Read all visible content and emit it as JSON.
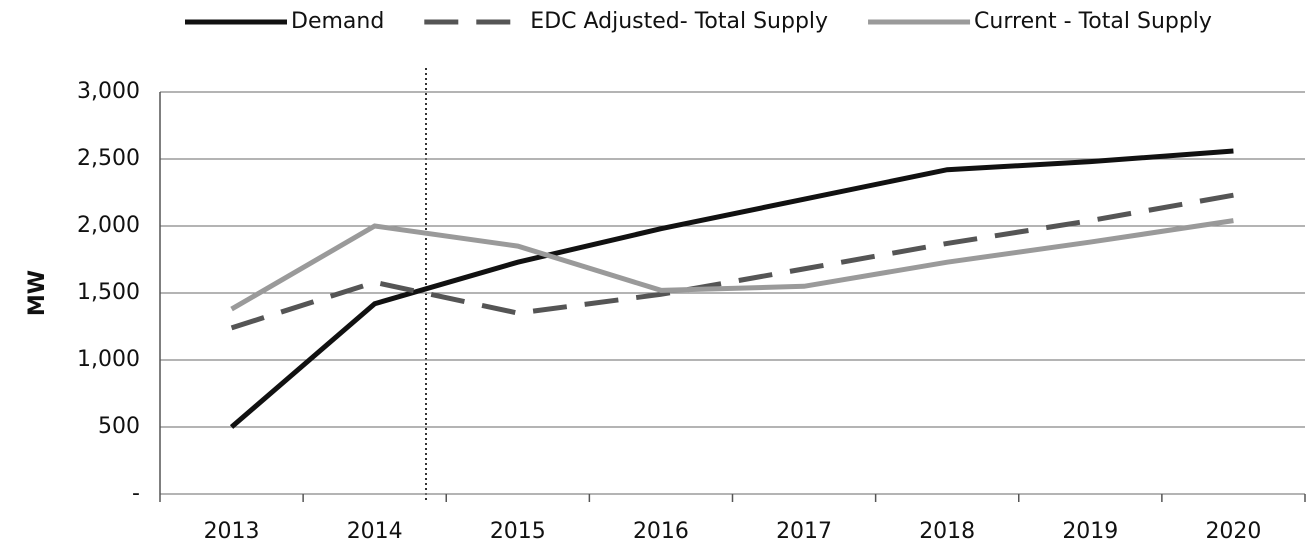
{
  "chart_data": {
    "type": "line",
    "y_label": "MW",
    "categories": [
      "2013",
      "2014",
      "2015",
      "2016",
      "2017",
      "2018",
      "2019",
      "2020"
    ],
    "series": [
      {
        "name": "Demand",
        "color": "#111111",
        "dash": false,
        "values": [
          500,
          1420,
          1730,
          1980,
          2200,
          2420,
          2480,
          2560
        ]
      },
      {
        "name": "EDC Adjusted- Total Supply",
        "color": "#555555",
        "dash": true,
        "values": [
          1240,
          1580,
          1350,
          1490,
          1680,
          1870,
          2040,
          2230
        ]
      },
      {
        "name": "Current - Total Supply",
        "color": "#9a9a9a",
        "dash": false,
        "values": [
          1380,
          2000,
          1850,
          1520,
          1550,
          1730,
          1880,
          2040
        ]
      }
    ],
    "ylim": [
      0,
      3000
    ],
    "yticks": [
      {
        "value": 0,
        "label": "-"
      },
      500,
      {
        "value": 1000,
        "label": "1,000"
      },
      {
        "value": 1500,
        "label": "1,500"
      },
      {
        "value": 2000,
        "label": "2,000"
      },
      {
        "value": 2500,
        "label": "2,500"
      },
      {
        "value": 3000,
        "label": "3,000"
      }
    ],
    "grid": true,
    "legend": "top"
  }
}
